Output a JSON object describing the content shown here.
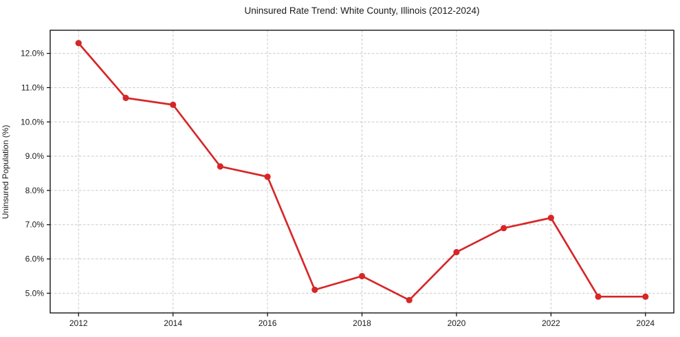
{
  "chart_data": {
    "type": "line",
    "title": "Uninsured Rate Trend: White County, Illinois (2012-2024)",
    "xlabel": "",
    "ylabel": "Uninsured Population (%)",
    "x": [
      2012,
      2013,
      2014,
      2015,
      2016,
      2017,
      2018,
      2019,
      2020,
      2021,
      2022,
      2023,
      2024
    ],
    "values": [
      12.3,
      10.7,
      10.5,
      8.7,
      8.4,
      5.1,
      5.5,
      4.8,
      6.2,
      6.9,
      7.2,
      4.9,
      4.9
    ],
    "xticks": [
      2012,
      2014,
      2016,
      2018,
      2020,
      2022,
      2024
    ],
    "xtick_labels": [
      "2012",
      "2014",
      "2016",
      "2018",
      "2020",
      "2022",
      "2024"
    ],
    "yticks": [
      5.0,
      6.0,
      7.0,
      8.0,
      9.0,
      10.0,
      11.0,
      12.0
    ],
    "ytick_labels": [
      "5.0%",
      "6.0%",
      "7.0%",
      "8.0%",
      "9.0%",
      "10.0%",
      "11.0%",
      "12.0%"
    ],
    "xlim": [
      2011.4,
      2024.6
    ],
    "ylim": [
      4.425,
      12.675
    ],
    "grid": true,
    "legend_position": "none",
    "line_color": "#d62728",
    "marker": "circle",
    "grid_color": "#c9c9c9",
    "axis_color": "#000000"
  }
}
